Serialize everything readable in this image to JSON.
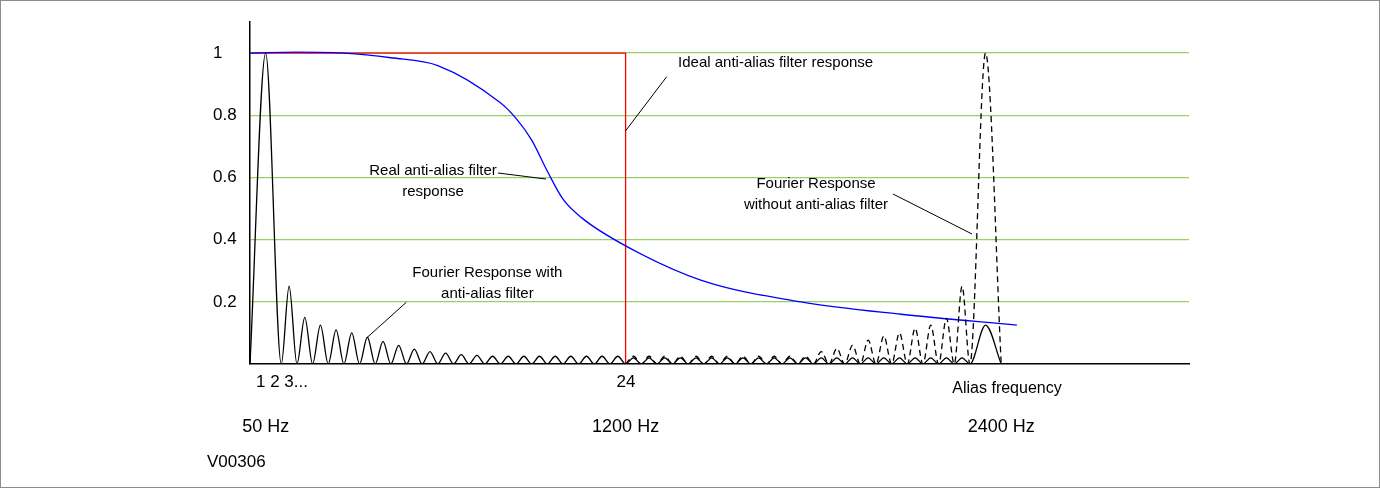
{
  "chart_data": {
    "type": "line",
    "xlim": [
      0,
      3000
    ],
    "ylim": [
      0,
      1.1
    ],
    "xticks": [
      {
        "value": 50,
        "label": "50 Hz"
      },
      {
        "value": 1200,
        "label": "1200 Hz"
      },
      {
        "value": 2400,
        "label": "2400 Hz"
      }
    ],
    "yticks": [
      0.2,
      0.4,
      0.6,
      0.8,
      1
    ],
    "grid": "y",
    "legend": false,
    "marker": "none",
    "series": [
      {
        "type": "line",
        "color": "#ff0000",
        "line_style": "solid",
        "x": [
          0,
          1200,
          1200
        ],
        "values": [
          1,
          1,
          0
        ]
      },
      {
        "type": "line",
        "color": "#0000ff",
        "line_style": "solid",
        "x": [
          0,
          150,
          300,
          450,
          600,
          800,
          850,
          900,
          950,
          1000,
          1060,
          1200,
          1440,
          1760,
          2080,
          2450
        ],
        "values": [
          1,
          1.003,
          1,
          0.985,
          0.96,
          0.84,
          0.79,
          0.72,
          0.62,
          0.53,
          0.47,
          0.38,
          0.27,
          0.2,
          0.16,
          0.125
        ]
      },
      {
        "type": "line",
        "color": "#000000",
        "line_style": "solid",
        "x": [
          0,
          50,
          100,
          125,
          150,
          175,
          200,
          225,
          250,
          275,
          300,
          325,
          350,
          375,
          400,
          425,
          450,
          475,
          500,
          525,
          550,
          575,
          600,
          625,
          650,
          675,
          700,
          725,
          750,
          775,
          800,
          825,
          850,
          875,
          900,
          925,
          950,
          975,
          1000,
          1025,
          1050,
          1075,
          1100,
          1125,
          1150,
          1175,
          1200,
          1225,
          1250,
          1275,
          1300,
          1325,
          1350,
          1375,
          1400,
          1425,
          1450,
          1475,
          1500,
          1525,
          1550,
          1575,
          1600,
          1625,
          1650,
          1675,
          1700,
          1725,
          1750,
          1775,
          1800,
          1825,
          1850,
          1875,
          1900,
          1925,
          1950,
          1975,
          2000,
          2025,
          2050,
          2075,
          2100,
          2125,
          2150,
          2175,
          2200,
          2225,
          2250,
          2275,
          2300,
          2350,
          2400
        ],
        "values": [
          0,
          1,
          0,
          0.25,
          0,
          0.15,
          0,
          0.125,
          0,
          0.11,
          0,
          0.1,
          0,
          0.086,
          0,
          0.073,
          0,
          0.06,
          0,
          0.048,
          0,
          0.04,
          0,
          0.035,
          0,
          0.03,
          0,
          0.028,
          0,
          0.025,
          0,
          0.025,
          0,
          0.025,
          0,
          0.025,
          0,
          0.025,
          0,
          0.025,
          0,
          0.025,
          0,
          0.025,
          0,
          0.025,
          0,
          0.02,
          0,
          0.02,
          0,
          0.02,
          0,
          0.02,
          0,
          0.02,
          0,
          0.02,
          0,
          0.02,
          0,
          0.02,
          0,
          0.02,
          0,
          0.02,
          0,
          0.02,
          0,
          0.02,
          0,
          0.02,
          0,
          0.02,
          0,
          0.02,
          0,
          0.02,
          0,
          0.02,
          0,
          0.02,
          0,
          0.02,
          0,
          0.02,
          0,
          0.02,
          0,
          0.02,
          0,
          0.125,
          0
        ]
      },
      {
        "type": "line",
        "color": "#000000",
        "line_style": "dashed",
        "x": [
          1200,
          1225,
          1250,
          1275,
          1300,
          1325,
          1350,
          1375,
          1400,
          1425,
          1450,
          1475,
          1500,
          1525,
          1550,
          1575,
          1600,
          1625,
          1650,
          1675,
          1700,
          1725,
          1750,
          1775,
          1800,
          1825,
          1850,
          1875,
          1900,
          1925,
          1950,
          1975,
          2000,
          2025,
          2050,
          2075,
          2100,
          2125,
          2150,
          2175,
          2200,
          2225,
          2250,
          2275,
          2300,
          2350,
          2400
        ],
        "values": [
          0,
          0.025,
          0,
          0.025,
          0,
          0.025,
          0,
          0.025,
          0,
          0.025,
          0,
          0.025,
          0,
          0.025,
          0,
          0.025,
          0,
          0.025,
          0,
          0.025,
          0,
          0.025,
          0,
          0.025,
          0,
          0.04,
          0,
          0.05,
          0,
          0.06,
          0,
          0.077,
          0,
          0.09,
          0,
          0.1,
          0,
          0.115,
          0,
          0.125,
          0,
          0.147,
          0,
          0.25,
          0,
          1,
          0
        ]
      }
    ],
    "annotations": [
      {
        "text": "Ideal anti-alias filter response",
        "x": 1200,
        "y": 0.75
      },
      {
        "text": "Fourier Response with anti-alias filter",
        "x": 375,
        "y": 0.086
      },
      "Real anti-alias filter response",
      "Fourier Response without anti-alias filter",
      "1 2 3...",
      "24",
      "Alias frequency",
      "V00306"
    ]
  }
}
